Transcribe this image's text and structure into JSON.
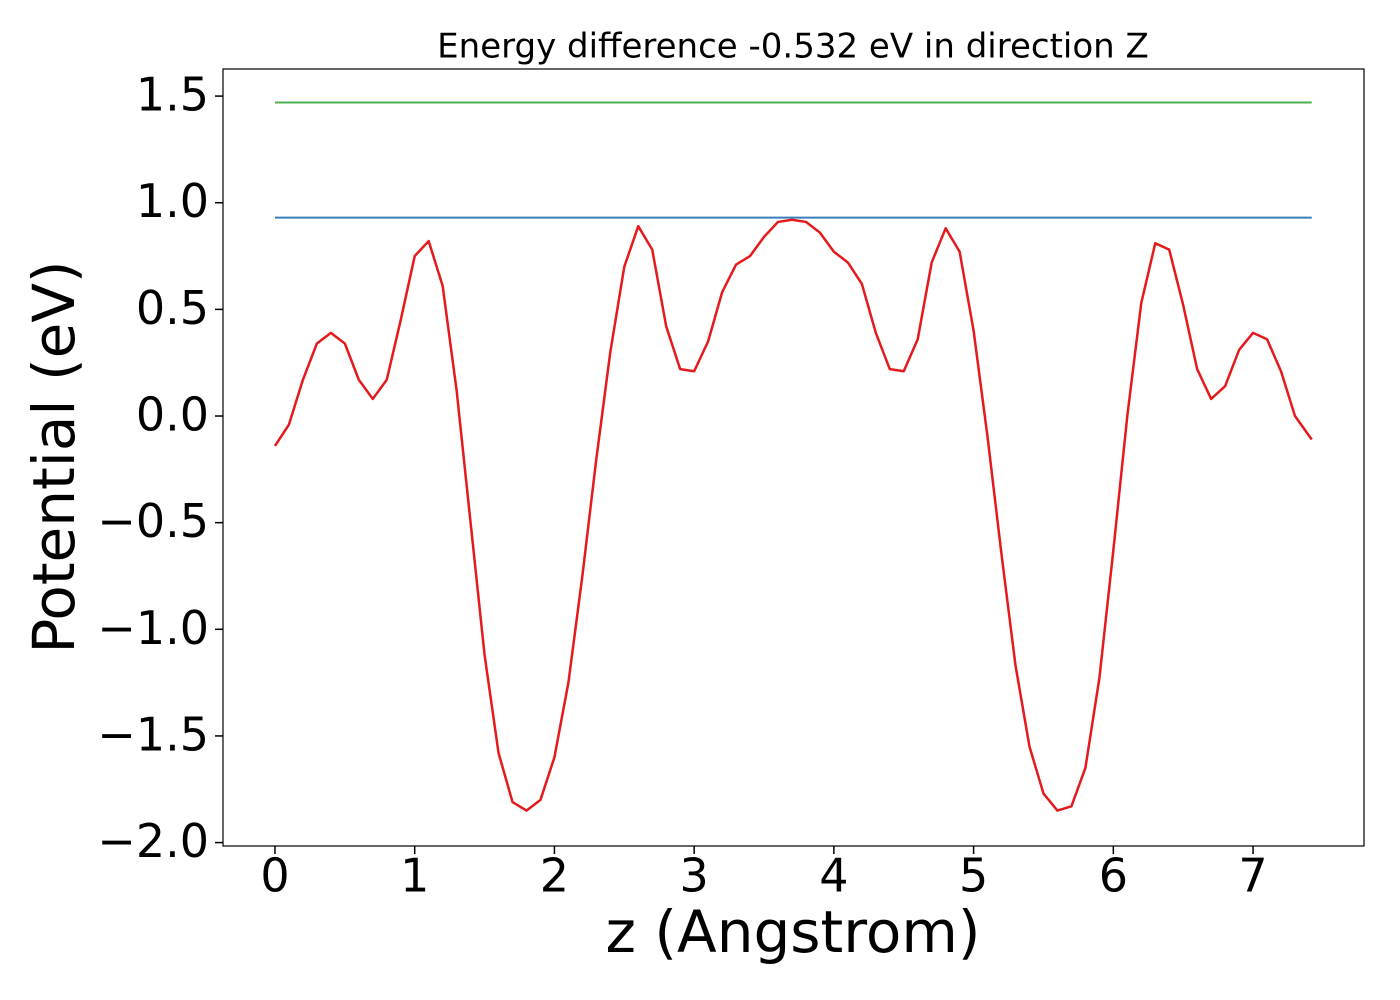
{
  "chart_data": {
    "type": "line",
    "title": "Energy difference -0.532 eV in direction Z",
    "xlabel": "z (Angstrom)",
    "ylabel": "Potential (eV)",
    "xlim": [
      -0.372,
      7.794
    ],
    "ylim": [
      -2.016,
      1.627
    ],
    "xticks": [
      0,
      1,
      2,
      3,
      4,
      5,
      6,
      7
    ],
    "yticks": [
      {
        "value": -2,
        "label": "−2.0"
      },
      {
        "value": -1.5,
        "label": "−1.5"
      },
      {
        "value": -1,
        "label": "−1.0"
      },
      {
        "value": -0.5,
        "label": "−0.5"
      },
      {
        "value": 0,
        "label": "0.0"
      },
      0.5,
      {
        "value": 1,
        "label": "1.0"
      },
      1.5
    ],
    "grid": false,
    "series": [
      {
        "color": "#e41a1c",
        "x": [
          0,
          0.1,
          0.2,
          0.3,
          0.4,
          0.5,
          0.6,
          0.7,
          0.8,
          0.9,
          1.0,
          1.1,
          1.2,
          1.3,
          1.4,
          1.5,
          1.6,
          1.7,
          1.8,
          1.9,
          2.0,
          2.1,
          2.2,
          2.3,
          2.4,
          2.5,
          2.6,
          2.7,
          2.8,
          2.9,
          3.0,
          3.1,
          3.2,
          3.3,
          3.4,
          3.5,
          3.6,
          3.7,
          3.8,
          3.9,
          4.0,
          4.1,
          4.2,
          4.3,
          4.4,
          4.5,
          4.6,
          4.7,
          4.8,
          4.9,
          5.0,
          5.1,
          5.2,
          5.3,
          5.4,
          5.5,
          5.6,
          5.7,
          5.8,
          5.9,
          6.0,
          6.1,
          6.2,
          6.3,
          6.4,
          6.5,
          6.6,
          6.7,
          6.8,
          6.9,
          7.0,
          7.1,
          7.2,
          7.3,
          7.42
        ],
        "values": [
          -0.14,
          -0.04,
          0.17,
          0.34,
          0.39,
          0.34,
          0.17,
          0.08,
          0.17,
          0.45,
          0.75,
          0.82,
          0.61,
          0.12,
          -0.5,
          -1.12,
          -1.58,
          -1.81,
          -1.85,
          -1.8,
          -1.6,
          -1.25,
          -0.75,
          -0.2,
          0.3,
          0.7,
          0.89,
          0.78,
          0.42,
          0.22,
          0.21,
          0.35,
          0.58,
          0.71,
          0.75,
          0.84,
          0.91,
          0.92,
          0.91,
          0.86,
          0.77,
          0.72,
          0.62,
          0.39,
          0.22,
          0.21,
          0.36,
          0.72,
          0.88,
          0.77,
          0.4,
          -0.1,
          -0.65,
          -1.17,
          -1.55,
          -1.77,
          -1.85,
          -1.83,
          -1.65,
          -1.23,
          -0.63,
          0.0,
          0.53,
          0.81,
          0.78,
          0.52,
          0.22,
          0.08,
          0.14,
          0.31,
          0.39,
          0.36,
          0.21,
          0.0,
          -0.11
        ]
      },
      {
        "color": "#377eb8",
        "x": [
          0,
          7.42
        ],
        "values": [
          0.93,
          0.93
        ]
      },
      {
        "color": "#4daf4a",
        "x": [
          0,
          7.42
        ],
        "values": [
          1.47,
          1.47
        ]
      }
    ]
  }
}
